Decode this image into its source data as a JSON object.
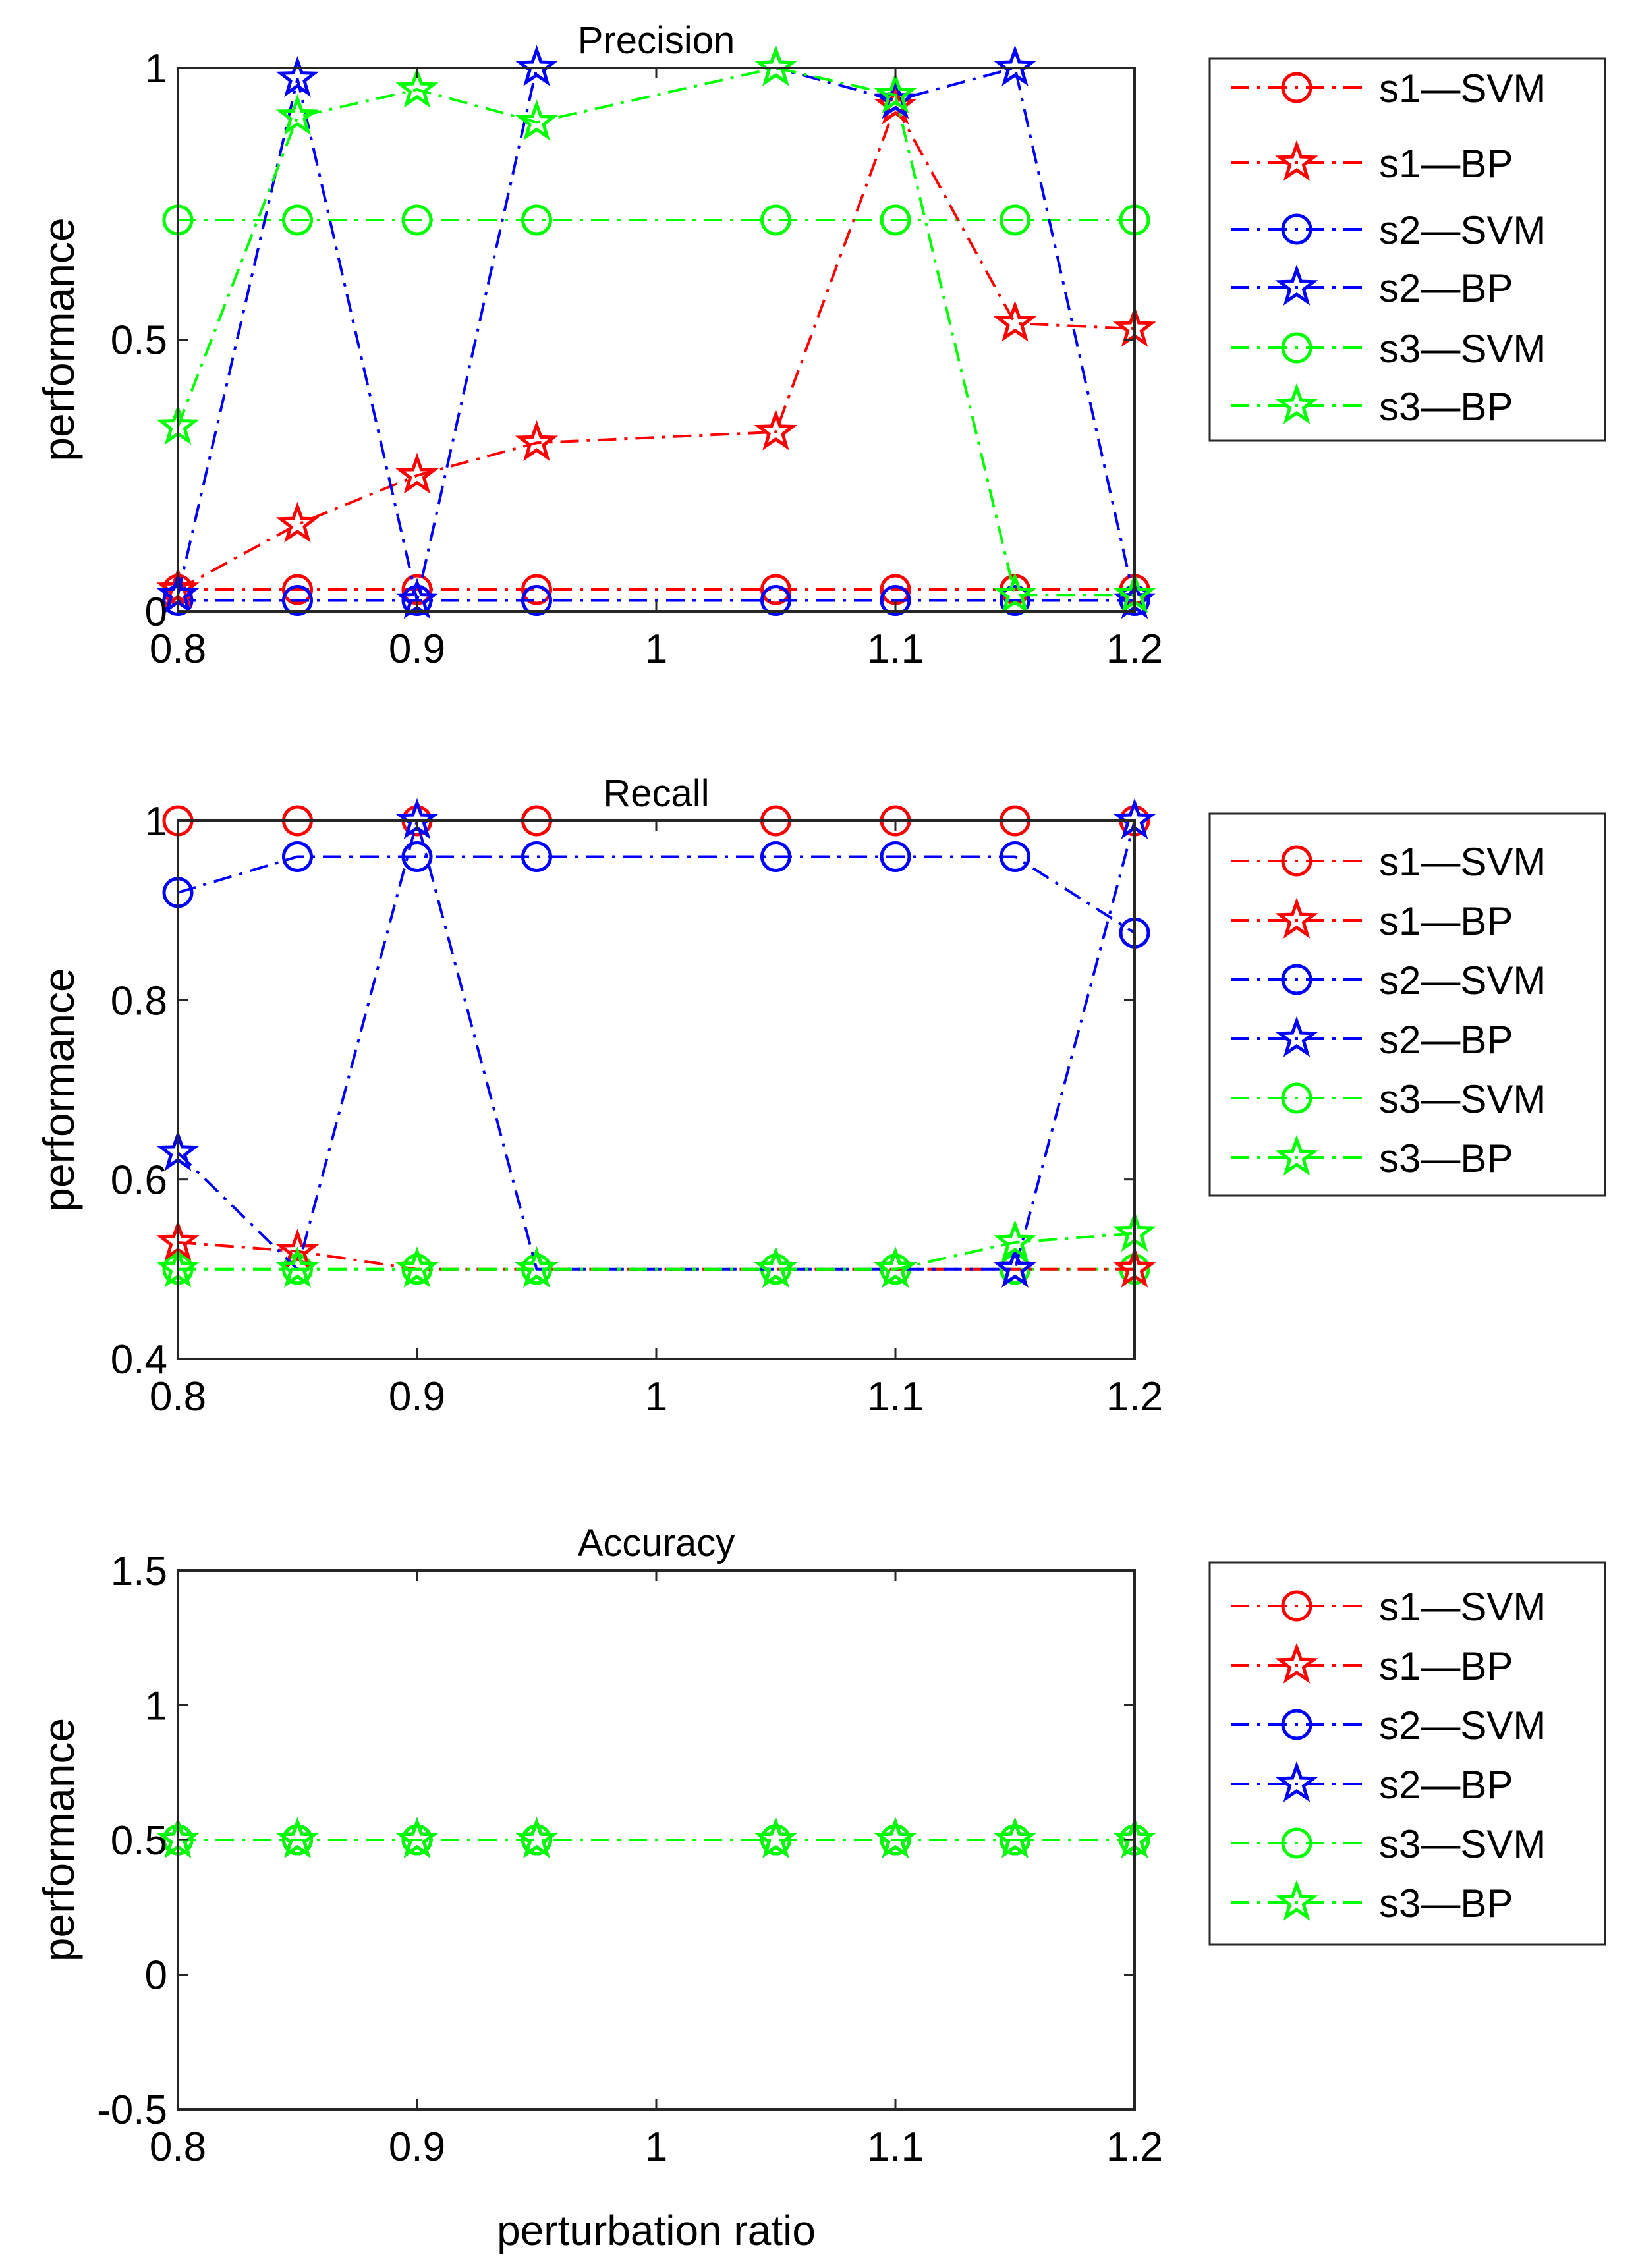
{
  "figure": {
    "xlabel": "perturbation ratio"
  },
  "styles": {
    "s1-SVM": {
      "color": "#ff0000",
      "marker": "circle"
    },
    "s1-BP": {
      "color": "#ff0000",
      "marker": "star"
    },
    "s2-SVM": {
      "color": "#0000ff",
      "marker": "circle"
    },
    "s2-BP": {
      "color": "#0000ff",
      "marker": "star"
    },
    "s3-SVM": {
      "color": "#00ff00",
      "marker": "circle"
    },
    "s3-BP": {
      "color": "#00ff00",
      "marker": "star"
    }
  },
  "chart_data": [
    {
      "type": "line",
      "title": "Precision",
      "xlabel": "",
      "ylabel": "performance",
      "xlim": [
        0.8,
        1.2
      ],
      "ylim": [
        0,
        1
      ],
      "xticks": [
        0.8,
        0.9,
        1.0,
        1.1,
        1.2
      ],
      "xtick_labels": [
        "0.8",
        "0.9",
        "1",
        "1.1",
        "1.2"
      ],
      "yticks": [
        0,
        0.5,
        1
      ],
      "ytick_labels": [
        "0",
        "0.5",
        "1"
      ],
      "legend": [
        "s1—SVM",
        "s1—BP",
        "s2—SVM",
        "s2—BP",
        "s3—SVM",
        "s3—BP"
      ],
      "x": [
        0.8,
        0.85,
        0.9,
        0.95,
        1.05,
        1.1,
        1.15,
        1.2
      ],
      "series": [
        {
          "name": "s3-SVM",
          "values": [
            0.72,
            0.72,
            0.72,
            0.72,
            0.72,
            0.72,
            0.72,
            0.72
          ]
        },
        {
          "name": "s1-SVM",
          "values": [
            0.04,
            0.04,
            0.04,
            0.04,
            0.04,
            0.04,
            0.04,
            0.04
          ]
        },
        {
          "name": "s2-SVM",
          "values": [
            0.02,
            0.02,
            0.02,
            0.02,
            0.02,
            0.02,
            0.02,
            0.02
          ]
        },
        {
          "name": "s1-BP",
          "values": [
            0.04,
            0.16,
            0.25,
            0.31,
            0.33,
            0.93,
            0.53,
            0.52
          ]
        },
        {
          "name": "s2-BP",
          "values": [
            0.03,
            0.98,
            0.02,
            1.0,
            1.0,
            0.94,
            1.0,
            0.02
          ]
        },
        {
          "name": "s3-BP",
          "values": [
            0.34,
            0.91,
            0.96,
            0.9,
            1.0,
            0.95,
            0.03,
            0.03
          ]
        }
      ]
    },
    {
      "type": "line",
      "title": "Recall",
      "xlabel": "",
      "ylabel": "performance",
      "xlim": [
        0.8,
        1.2
      ],
      "ylim": [
        0.4,
        1.0
      ],
      "xticks": [
        0.8,
        0.9,
        1.0,
        1.1,
        1.2
      ],
      "xtick_labels": [
        "0.8",
        "0.9",
        "1",
        "1.1",
        "1.2"
      ],
      "yticks": [
        0.4,
        0.6,
        0.8,
        1.0
      ],
      "ytick_labels": [
        "0.4",
        "0.6",
        "0.8",
        "1"
      ],
      "legend": [
        "s1—SVM",
        "s1—BP",
        "s2—SVM",
        "s2—BP",
        "s3—SVM",
        "s3—BP"
      ],
      "x": [
        0.8,
        0.85,
        0.9,
        0.95,
        1.05,
        1.1,
        1.15,
        1.2
      ],
      "series": [
        {
          "name": "s1-SVM",
          "values": [
            1.0,
            1.0,
            1.0,
            1.0,
            1.0,
            1.0,
            1.0,
            1.0
          ]
        },
        {
          "name": "s2-SVM",
          "values": [
            0.92,
            0.96,
            0.96,
            0.96,
            0.96,
            0.96,
            0.96,
            0.875
          ]
        },
        {
          "name": "s3-SVM",
          "values": [
            0.5,
            0.5,
            0.5,
            0.5,
            0.5,
            0.5,
            0.5,
            0.5
          ]
        },
        {
          "name": "s1-BP",
          "values": [
            0.53,
            0.52,
            0.5,
            0.5,
            0.5,
            0.5,
            0.5,
            0.5
          ]
        },
        {
          "name": "s2-BP",
          "values": [
            0.63,
            0.5,
            1.0,
            0.5,
            0.5,
            0.5,
            0.5,
            1.0
          ]
        },
        {
          "name": "s3-BP",
          "values": [
            0.5,
            0.5,
            0.5,
            0.5,
            0.5,
            0.5,
            0.53,
            0.54
          ]
        }
      ]
    },
    {
      "type": "line",
      "title": "Accuracy",
      "xlabel": "perturbation ratio",
      "ylabel": "performance",
      "xlim": [
        0.8,
        1.2
      ],
      "ylim": [
        -0.5,
        1.5
      ],
      "xticks": [
        0.8,
        0.9,
        1.0,
        1.1,
        1.2
      ],
      "xtick_labels": [
        "0.8",
        "0.9",
        "1",
        "1.1",
        "1.2"
      ],
      "yticks": [
        -0.5,
        0,
        0.5,
        1,
        1.5
      ],
      "ytick_labels": [
        "-0.5",
        "0",
        "0.5",
        "1",
        "1.5"
      ],
      "legend": [
        "s1—SVM",
        "s1—BP",
        "s2—SVM",
        "s2—BP",
        "s3—SVM",
        "s3—BP"
      ],
      "x": [
        0.8,
        0.85,
        0.9,
        0.95,
        1.05,
        1.1,
        1.15,
        1.2
      ],
      "series": [
        {
          "name": "s1-SVM",
          "values": [
            0.5,
            0.5,
            0.5,
            0.5,
            0.5,
            0.5,
            0.5,
            0.5
          ]
        },
        {
          "name": "s1-BP",
          "values": [
            0.5,
            0.5,
            0.5,
            0.5,
            0.5,
            0.5,
            0.5,
            0.5
          ]
        },
        {
          "name": "s2-SVM",
          "values": [
            0.5,
            0.5,
            0.5,
            0.5,
            0.5,
            0.5,
            0.5,
            0.5
          ]
        },
        {
          "name": "s2-BP",
          "values": [
            0.5,
            0.5,
            0.5,
            0.5,
            0.5,
            0.5,
            0.5,
            0.5
          ]
        },
        {
          "name": "s3-SVM",
          "values": [
            0.5,
            0.5,
            0.5,
            0.5,
            0.5,
            0.5,
            0.5,
            0.5
          ]
        },
        {
          "name": "s3-BP",
          "values": [
            0.5,
            0.5,
            0.5,
            0.5,
            0.5,
            0.5,
            0.5,
            0.5
          ]
        }
      ]
    }
  ]
}
